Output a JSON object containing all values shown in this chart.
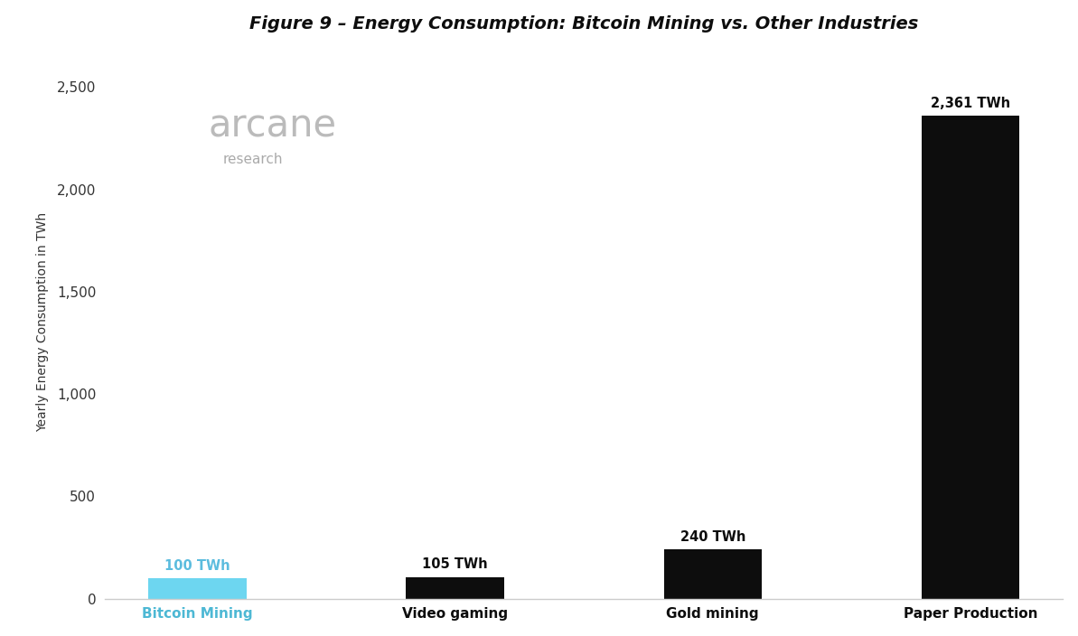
{
  "title": "Figure 9 – Energy Consumption: Bitcoin Mining vs. Other Industries",
  "categories": [
    "Bitcoin Mining",
    "Video gaming",
    "Gold mining",
    "Paper Production"
  ],
  "values": [
    100,
    105,
    240,
    2361
  ],
  "bar_colors": [
    "#6dd6f0",
    "#0d0d0d",
    "#0d0d0d",
    "#0d0d0d"
  ],
  "bar_labels": [
    "100 TWh",
    "105 TWh",
    "240 TWh",
    "2,361 TWh"
  ],
  "bar_label_colors": [
    "#5bbcde",
    "#0d0d0d",
    "#0d0d0d",
    "#0d0d0d"
  ],
  "xlabel_colors": [
    "#4db8d4",
    "#0d0d0d",
    "#0d0d0d",
    "#0d0d0d"
  ],
  "ylabel": "Yearly Energy Consumption in TWh",
  "ylim": [
    0,
    2700
  ],
  "yticks": [
    0,
    500,
    1000,
    1500,
    2000,
    2500
  ],
  "background_color": "#ffffff",
  "title_fontsize": 14,
  "ylabel_fontsize": 10,
  "tick_fontsize": 11,
  "xlabel_fontsize": 11,
  "bar_label_fontsize": 10.5,
  "arcane_text": "arcane",
  "arcane_sub": "research",
  "watermark_color": "#bbbbbb",
  "watermark_sub_color": "#aaaaaa",
  "bar_width": 0.38
}
